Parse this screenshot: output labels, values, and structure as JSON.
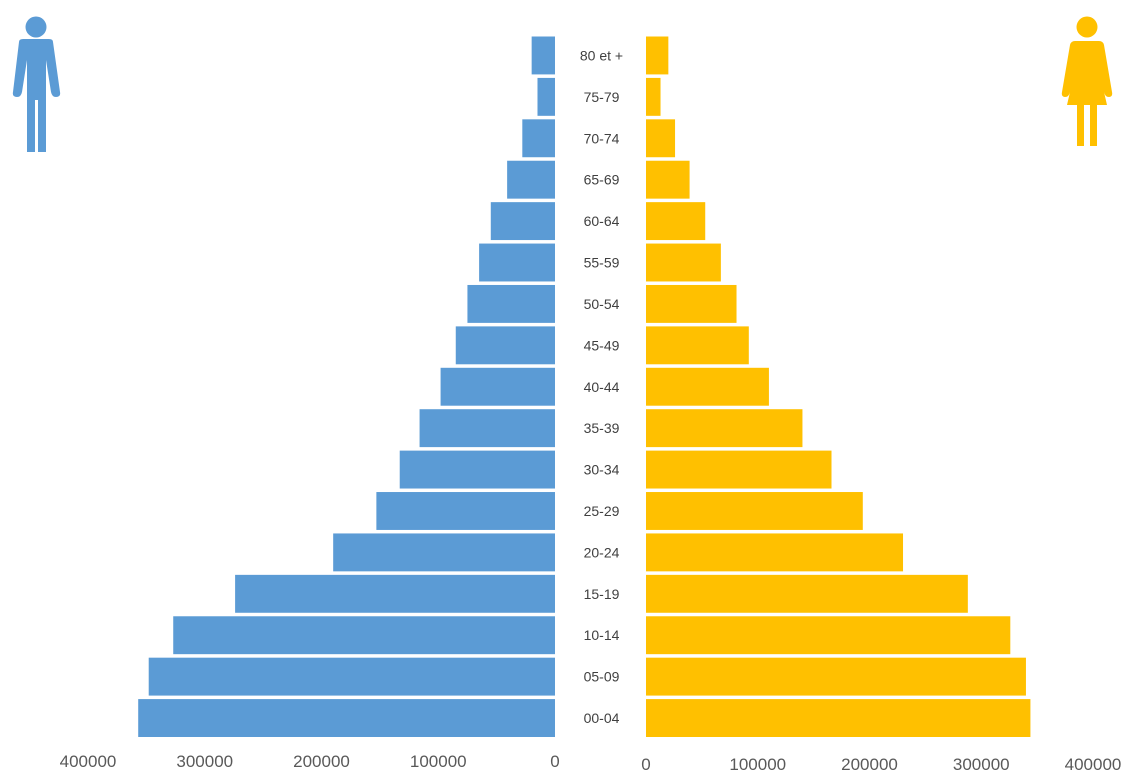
{
  "chart_data": {
    "type": "bar",
    "orientation": "horizontal-population-pyramid",
    "categories": [
      "00-04",
      "05-09",
      "10-14",
      "15-19",
      "20-24",
      "25-29",
      "30-34",
      "35-39",
      "40-44",
      "45-49",
      "50-54",
      "55-59",
      "60-64",
      "65-69",
      "70-74",
      "75-79",
      "80 et +"
    ],
    "series": [
      {
        "values": [
          357000,
          348000,
          327000,
          274000,
          190000,
          153000,
          133000,
          116000,
          98000,
          85000,
          75000,
          65000,
          55000,
          41000,
          28000,
          15000,
          20000
        ],
        "color": "#5b9bd5",
        "side": "left"
      },
      {
        "values": [
          344000,
          340000,
          326000,
          288000,
          230000,
          194000,
          166000,
          140000,
          110000,
          92000,
          81000,
          67000,
          53000,
          39000,
          26000,
          13000,
          20000
        ],
        "color": "#ffc000",
        "side": "right"
      }
    ],
    "left_axis": {
      "ticks": [
        "400000",
        "300000",
        "200000",
        "100000",
        "0"
      ],
      "xlim": [
        0,
        400000
      ]
    },
    "right_axis": {
      "ticks": [
        "0",
        "100000",
        "200000",
        "300000",
        "400000"
      ],
      "xlim": [
        0,
        400000
      ]
    },
    "grid": false,
    "legend": "icons at top-left (male) and top-right (female)"
  },
  "icons": {
    "left": "male-person-icon",
    "right": "female-person-icon"
  }
}
